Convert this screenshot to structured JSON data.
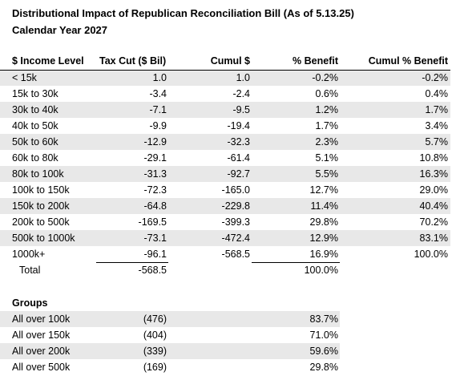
{
  "title": "Distributional Impact of Republican Reconciliation Bill (As of 5.13.25)",
  "subtitle": "Calendar Year 2027",
  "headers": [
    "$ Income Level",
    "Tax Cut ($ Bil)",
    "Cumul $",
    "% Benefit",
    "Cumul % Benefit"
  ],
  "rows": [
    [
      "< 15k",
      "1.0",
      "1.0",
      "-0.2%",
      "-0.2%"
    ],
    [
      "15k to 30k",
      "-3.4",
      "-2.4",
      "0.6%",
      "0.4%"
    ],
    [
      "30k to 40k",
      "-7.1",
      "-9.5",
      "1.2%",
      "1.7%"
    ],
    [
      "40k to 50k",
      "-9.9",
      "-19.4",
      "1.7%",
      "3.4%"
    ],
    [
      "50k to 60k",
      "-12.9",
      "-32.3",
      "2.3%",
      "5.7%"
    ],
    [
      "60k to 80k",
      "-29.1",
      "-61.4",
      "5.1%",
      "10.8%"
    ],
    [
      "80k to 100k",
      "-31.3",
      "-92.7",
      "5.5%",
      "16.3%"
    ],
    [
      "100k to 150k",
      "-72.3",
      "-165.0",
      "12.7%",
      "29.0%"
    ],
    [
      "150k to 200k",
      "-64.8",
      "-229.8",
      "11.4%",
      "40.4%"
    ],
    [
      "200k to 500k",
      "-169.5",
      "-399.3",
      "29.8%",
      "70.2%"
    ],
    [
      "500k to 1000k",
      "-73.1",
      "-472.4",
      "12.9%",
      "83.1%"
    ],
    [
      "1000k+",
      "-96.1",
      "-568.5",
      "16.9%",
      "100.0%"
    ]
  ],
  "total": {
    "label": "Total",
    "tax_cut": "-568.5",
    "benefit": "100.0%"
  },
  "groups": {
    "heading": "Groups",
    "rows": [
      [
        "All over 100k",
        "(476)",
        "83.7%"
      ],
      [
        "All over 150k",
        "(404)",
        "71.0%"
      ],
      [
        "All over 200k",
        "(339)",
        "59.6%"
      ],
      [
        "All over 500k",
        "(169)",
        "29.8%"
      ]
    ]
  },
  "colors": {
    "band": "#e8e8e8",
    "text": "#000000"
  }
}
